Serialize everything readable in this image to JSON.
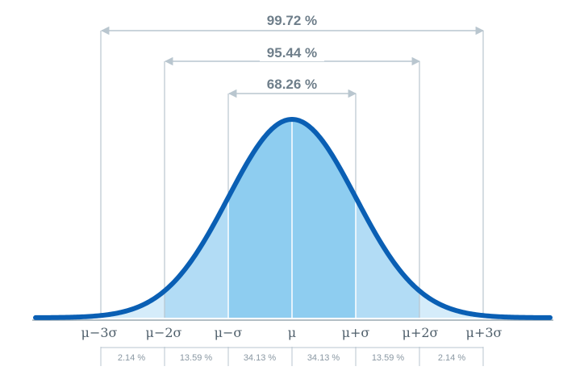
{
  "ranges": [
    {
      "label": "99.72 %"
    },
    {
      "label": "95.44 %"
    },
    {
      "label": "68.26 %"
    }
  ],
  "ticks": [
    "μ−3σ",
    "μ−2σ",
    "μ−σ",
    "μ",
    "μ+σ",
    "μ+2σ",
    "μ+3σ"
  ],
  "segments": [
    "2.14 %",
    "13.59 %",
    "34.13 %",
    "34.13 %",
    "13.59 %",
    "2.14 %"
  ],
  "colors": {
    "curve": "#0a5fb4",
    "fill_inner": "#8ecdf0",
    "fill_middle": "#b2dcf5",
    "fill_outer": "#d5ecfa",
    "guide": "#b9c6cf",
    "axis": "#9aa8b2"
  }
}
